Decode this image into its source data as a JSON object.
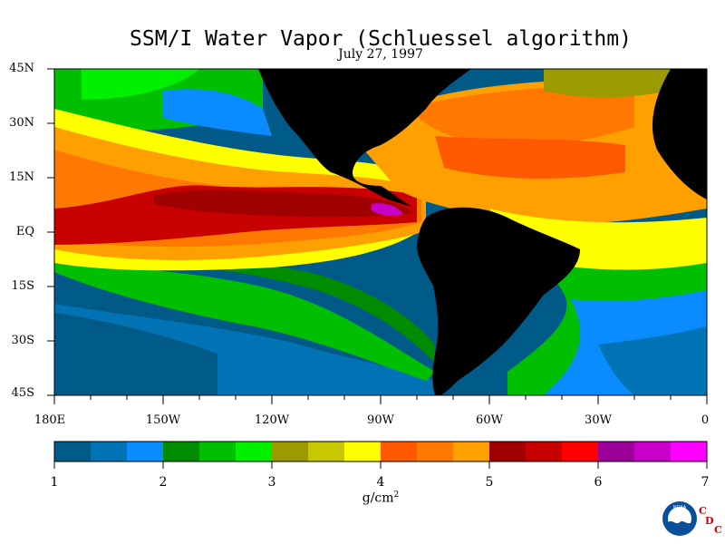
{
  "title": "SSM/I Water Vapor (Schluessel algorithm)",
  "subtitle": "July 27, 1997",
  "lat_labels": [
    "45N",
    "30N",
    "15N",
    "EQ",
    "15S",
    "30S",
    "45S"
  ],
  "lon_labels": [
    "180E",
    "150W",
    "120W",
    "90W",
    "60W",
    "30W",
    "0"
  ],
  "colorbar": {
    "labels": [
      "1",
      "2",
      "3",
      "4",
      "5",
      "6",
      "7"
    ],
    "units_base": "g/cm",
    "units_sup": "2",
    "colors": [
      "#005a87",
      "#0073b4",
      "#0a8cff",
      "#008c00",
      "#00be00",
      "#00f000",
      "#9b9b00",
      "#c8c800",
      "#ffff00",
      "#ff5a00",
      "#ff7800",
      "#ffa000",
      "#a00000",
      "#c80000",
      "#ff0000",
      "#9b009b",
      "#c800c8",
      "#ff00ff"
    ]
  },
  "map_colors": {
    "land": "#000000",
    "cold_ocean": "#005a87"
  },
  "logo": {
    "noaa_text": "NOAA",
    "c1": "C",
    "d": "D",
    "c2": "C"
  }
}
